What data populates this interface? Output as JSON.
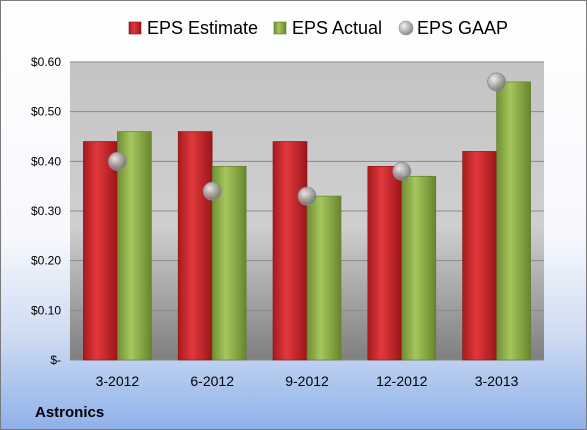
{
  "chart_data": {
    "type": "bar",
    "categories": [
      "3-2012",
      "6-2012",
      "9-2012",
      "12-2012",
      "3-2013"
    ],
    "series": [
      {
        "name": "EPS Estimate",
        "kind": "bar",
        "color": "#c8282c",
        "values": [
          0.44,
          0.46,
          0.44,
          0.39,
          0.42
        ]
      },
      {
        "name": "EPS Actual",
        "kind": "bar",
        "color": "#8fb24a",
        "values": [
          0.46,
          0.39,
          0.33,
          0.37,
          0.56
        ]
      },
      {
        "name": "EPS GAAP",
        "kind": "scatter",
        "color": "#b4b4b4",
        "values": [
          0.4,
          0.34,
          0.33,
          0.38,
          0.56
        ]
      }
    ],
    "y_ticks": [
      0,
      0.1,
      0.2,
      0.3,
      0.4,
      0.5,
      0.6
    ],
    "y_tick_labels": [
      "$-",
      "$0.10",
      "$0.20",
      "$0.30",
      "$0.40",
      "$0.50",
      "$0.60"
    ],
    "ylim": [
      0,
      0.6
    ],
    "grid": true,
    "legend_position": "top"
  },
  "footer": {
    "company": "Astronics"
  }
}
